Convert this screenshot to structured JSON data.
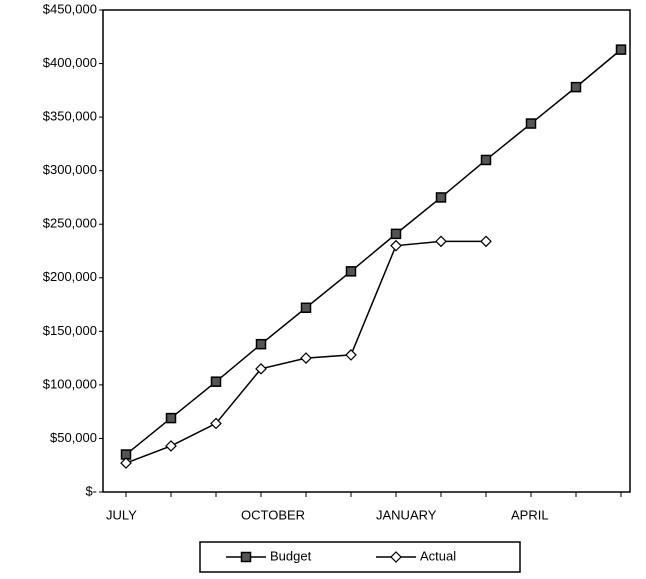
{
  "chart_data": {
    "type": "line",
    "categories": [
      "JULY",
      null,
      null,
      "OCTOBER",
      null,
      null,
      "JANUARY",
      null,
      null,
      "APRIL",
      null,
      null
    ],
    "series": [
      {
        "name": "Budget",
        "color": "#000000",
        "marker": "square",
        "values": [
          35000,
          69000,
          103000,
          138000,
          172000,
          206000,
          241000,
          275000,
          310000,
          344000,
          378000,
          413000
        ]
      },
      {
        "name": "Actual",
        "color": "#000000",
        "marker": "diamond",
        "values": [
          27000,
          43000,
          64000,
          115000,
          125000,
          128000,
          230000,
          234000,
          234000,
          null,
          null,
          null
        ]
      }
    ],
    "ylim": [
      0,
      450000
    ],
    "yticks": [
      {
        "value": 0,
        "label": "$-"
      },
      {
        "value": 50000,
        "label": "$50,000"
      },
      {
        "value": 100000,
        "label": "$100,000"
      },
      {
        "value": 150000,
        "label": "$150,000"
      },
      {
        "value": 200000,
        "label": "$200,000"
      },
      {
        "value": 250000,
        "label": "$250,000"
      },
      {
        "value": 300000,
        "label": "$300,000"
      },
      {
        "value": 350000,
        "label": "$350,000"
      },
      {
        "value": 400000,
        "label": "$400,000"
      },
      {
        "value": 450000,
        "label": "$450,000"
      }
    ],
    "grid": false,
    "legend": "bottom"
  }
}
